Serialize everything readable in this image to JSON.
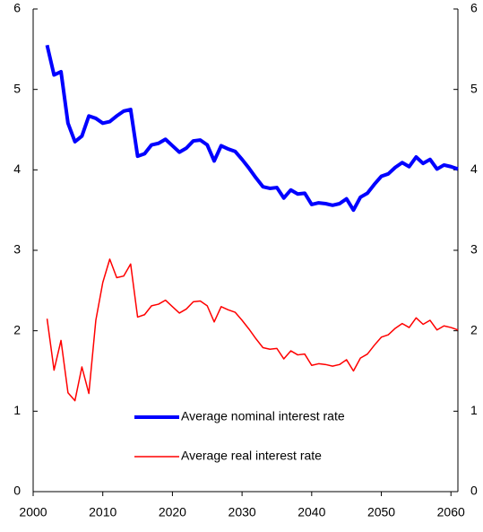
{
  "chart_data": {
    "type": "line",
    "x": [
      2002,
      2003,
      2004,
      2005,
      2006,
      2007,
      2008,
      2009,
      2010,
      2011,
      2012,
      2013,
      2014,
      2015,
      2016,
      2017,
      2018,
      2019,
      2020,
      2021,
      2022,
      2023,
      2024,
      2025,
      2026,
      2027,
      2028,
      2029,
      2030,
      2031,
      2032,
      2033,
      2034,
      2035,
      2036,
      2037,
      2038,
      2039,
      2040,
      2041,
      2042,
      2043,
      2044,
      2045,
      2046,
      2047,
      2048,
      2049,
      2050,
      2051,
      2052,
      2053,
      2054,
      2055,
      2056,
      2057,
      2058,
      2059,
      2060,
      2061
    ],
    "series": [
      {
        "name": "Average nominal interest rate",
        "color": "#0000ff",
        "values": [
          5.55,
          5.18,
          5.22,
          4.58,
          4.35,
          4.42,
          4.67,
          4.64,
          4.58,
          4.6,
          4.67,
          4.73,
          4.75,
          4.17,
          4.2,
          4.31,
          4.33,
          4.38,
          4.3,
          4.22,
          4.27,
          4.36,
          4.37,
          4.31,
          4.11,
          4.3,
          4.26,
          4.23,
          4.13,
          4.02,
          3.9,
          3.79,
          3.77,
          3.78,
          3.65,
          3.75,
          3.7,
          3.71,
          3.57,
          3.59,
          3.58,
          3.56,
          3.58,
          3.64,
          3.5,
          3.66,
          3.71,
          3.82,
          3.92,
          3.95,
          4.03,
          4.09,
          4.04,
          4.16,
          4.08,
          4.13,
          4.01,
          4.06,
          4.04,
          4.01
        ]
      },
      {
        "name": "Average real interest rate",
        "color": "#ff0000",
        "values": [
          2.15,
          1.51,
          1.88,
          1.23,
          1.13,
          1.55,
          1.22,
          2.13,
          2.6,
          2.89,
          2.66,
          2.68,
          2.83,
          2.17,
          2.2,
          2.31,
          2.33,
          2.38,
          2.3,
          2.22,
          2.27,
          2.36,
          2.37,
          2.31,
          2.11,
          2.3,
          2.26,
          2.23,
          2.13,
          2.02,
          1.9,
          1.79,
          1.77,
          1.78,
          1.65,
          1.75,
          1.7,
          1.71,
          1.57,
          1.59,
          1.58,
          1.56,
          1.58,
          1.64,
          1.5,
          1.66,
          1.71,
          1.82,
          1.92,
          1.95,
          2.03,
          2.09,
          2.04,
          2.16,
          2.08,
          2.13,
          2.01,
          2.06,
          2.04,
          2.01
        ]
      }
    ],
    "xlim": [
      2000,
      2061
    ],
    "xticks": [
      2000,
      2010,
      2020,
      2030,
      2040,
      2050,
      2060
    ],
    "ylim": [
      0,
      6
    ],
    "yticks": [
      0,
      1,
      2,
      3,
      4,
      5,
      6
    ],
    "y2lim": [
      0,
      6
    ],
    "y2ticks": [
      0,
      1,
      2,
      3,
      4,
      5,
      6
    ]
  }
}
